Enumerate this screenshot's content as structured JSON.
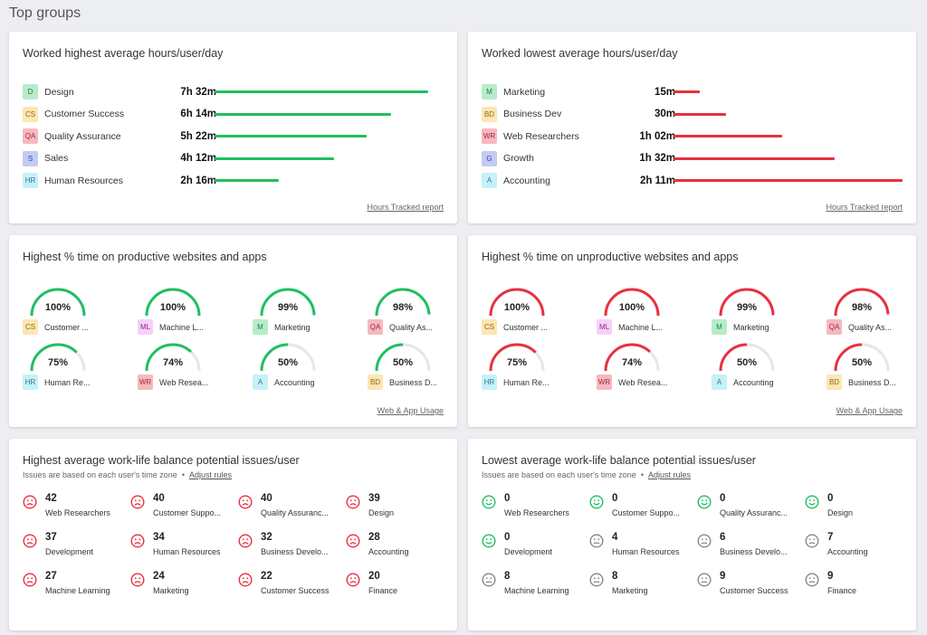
{
  "page_title": "Top groups",
  "colors": {
    "green": "#1fbf5f",
    "red": "#e8303f",
    "gray_track": "#e6e6e6",
    "neutral_face": "#888888"
  },
  "highest_hours": {
    "title": "Worked highest average hours/user/day",
    "link": "Hours Tracked report",
    "rows": [
      {
        "badge": "D",
        "badge_bg": "#b7ecc9",
        "badge_fg": "#267a45",
        "name": "Design",
        "value": "7h 32m",
        "minutes": 452
      },
      {
        "badge": "CS",
        "badge_bg": "#fde6b3",
        "badge_fg": "#8a6a1a",
        "name": "Customer Success",
        "value": "6h 14m",
        "minutes": 374
      },
      {
        "badge": "QA",
        "badge_bg": "#f7b8bf",
        "badge_fg": "#9a2b37",
        "name": "Quality Assurance",
        "value": "5h 22m",
        "minutes": 322
      },
      {
        "badge": "S",
        "badge_bg": "#c4cbf3",
        "badge_fg": "#3c4891",
        "name": "Sales",
        "value": "4h 12m",
        "minutes": 252
      },
      {
        "badge": "HR",
        "badge_bg": "#c6f1f8",
        "badge_fg": "#2b7a88",
        "name": "Human Resources",
        "value": "2h 16m",
        "minutes": 136
      }
    ]
  },
  "lowest_hours": {
    "title": "Worked lowest average hours/user/day",
    "link": "Hours Tracked report",
    "rows": [
      {
        "badge": "M",
        "badge_bg": "#b7ecc9",
        "badge_fg": "#267a45",
        "name": "Marketing",
        "value": "15m",
        "minutes": 15
      },
      {
        "badge": "BD",
        "badge_bg": "#fde6b3",
        "badge_fg": "#8a6a1a",
        "name": "Business Dev",
        "value": "30m",
        "minutes": 30
      },
      {
        "badge": "WR",
        "badge_bg": "#f7b8bf",
        "badge_fg": "#9a2b37",
        "name": "Web Researchers",
        "value": "1h 02m",
        "minutes": 62
      },
      {
        "badge": "G",
        "badge_bg": "#c4cbf3",
        "badge_fg": "#3c4891",
        "name": "Growth",
        "value": "1h 32m",
        "minutes": 92
      },
      {
        "badge": "A",
        "badge_bg": "#c6f1f8",
        "badge_fg": "#2b7a88",
        "name": "Accounting",
        "value": "2h 11m",
        "minutes": 131
      }
    ]
  },
  "productive": {
    "title": "Highest % time on productive websites and apps",
    "link": "Web & App Usage",
    "items": [
      {
        "badge": "CS",
        "badge_bg": "#fde6b3",
        "badge_fg": "#8a6a1a",
        "label": "Customer ...",
        "pct_label": "100%",
        "pct": 100
      },
      {
        "badge": "ML",
        "badge_bg": "#f7d1f7",
        "badge_fg": "#8a2f8a",
        "label": "Machine L...",
        "pct_label": "100%",
        "pct": 100
      },
      {
        "badge": "M",
        "badge_bg": "#b7ecc9",
        "badge_fg": "#267a45",
        "label": "Marketing",
        "pct_label": "99%",
        "pct": 99
      },
      {
        "badge": "QA",
        "badge_bg": "#f7b8bf",
        "badge_fg": "#9a2b37",
        "label": "Quality As...",
        "pct_label": "98%",
        "pct": 98
      },
      {
        "badge": "HR",
        "badge_bg": "#c6f1f8",
        "badge_fg": "#2b7a88",
        "label": "Human Re...",
        "pct_label": "75%",
        "pct": 75
      },
      {
        "badge": "WR",
        "badge_bg": "#f7b8bf",
        "badge_fg": "#9a2b37",
        "label": "Web Resea...",
        "pct_label": "74%",
        "pct": 74
      },
      {
        "badge": "A",
        "badge_bg": "#c6f1f8",
        "badge_fg": "#2b7a88",
        "label": "Accounting",
        "pct_label": "50%",
        "pct": 50
      },
      {
        "badge": "BD",
        "badge_bg": "#fde6b3",
        "badge_fg": "#8a6a1a",
        "label": "Business D...",
        "pct_label": "50%",
        "pct": 50
      }
    ]
  },
  "unproductive": {
    "title": "Highest % time on unproductive websites and apps",
    "link": "Web & App Usage",
    "items": [
      {
        "badge": "CS",
        "badge_bg": "#fde6b3",
        "badge_fg": "#8a6a1a",
        "label": "Customer ...",
        "pct_label": "100%",
        "pct": 100
      },
      {
        "badge": "ML",
        "badge_bg": "#f7d1f7",
        "badge_fg": "#8a2f8a",
        "label": "Machine L...",
        "pct_label": "100%",
        "pct": 100
      },
      {
        "badge": "M",
        "badge_bg": "#b7ecc9",
        "badge_fg": "#267a45",
        "label": "Marketing",
        "pct_label": "99%",
        "pct": 99
      },
      {
        "badge": "QA",
        "badge_bg": "#f7b8bf",
        "badge_fg": "#9a2b37",
        "label": "Quality As...",
        "pct_label": "98%",
        "pct": 98
      },
      {
        "badge": "HR",
        "badge_bg": "#c6f1f8",
        "badge_fg": "#2b7a88",
        "label": "Human Re...",
        "pct_label": "75%",
        "pct": 75
      },
      {
        "badge": "WR",
        "badge_bg": "#f7b8bf",
        "badge_fg": "#9a2b37",
        "label": "Web Resea...",
        "pct_label": "74%",
        "pct": 74
      },
      {
        "badge": "A",
        "badge_bg": "#c6f1f8",
        "badge_fg": "#2b7a88",
        "label": "Accounting",
        "pct_label": "50%",
        "pct": 50
      },
      {
        "badge": "BD",
        "badge_bg": "#fde6b3",
        "badge_fg": "#8a6a1a",
        "label": "Business D...",
        "pct_label": "50%",
        "pct": 50
      }
    ]
  },
  "highest_issues": {
    "title": "Highest average work-life balance potential issues/user",
    "subtitle": "Issues are based on each user's time zone",
    "adjust": "Adjust rules",
    "items": [
      {
        "count": "42",
        "label": "Web Researchers",
        "face": "sad"
      },
      {
        "count": "40",
        "label": "Customer Suppo...",
        "face": "sad"
      },
      {
        "count": "40",
        "label": "Quality Assuranc...",
        "face": "sad"
      },
      {
        "count": "39",
        "label": "Design",
        "face": "sad"
      },
      {
        "count": "37",
        "label": "Development",
        "face": "sad"
      },
      {
        "count": "34",
        "label": "Human Resources",
        "face": "sad"
      },
      {
        "count": "32",
        "label": "Business Develo...",
        "face": "sad"
      },
      {
        "count": "28",
        "label": "Accounting",
        "face": "sad"
      },
      {
        "count": "27",
        "label": "Machine Learning",
        "face": "sad"
      },
      {
        "count": "24",
        "label": "Marketing",
        "face": "sad"
      },
      {
        "count": "22",
        "label": "Customer Success",
        "face": "sad"
      },
      {
        "count": "20",
        "label": "Finance",
        "face": "sad"
      }
    ]
  },
  "lowest_issues": {
    "title": "Lowest average work-life balance potential issues/user",
    "subtitle": "Issues are based on each user's time zone",
    "adjust": "Adjust rules",
    "items": [
      {
        "count": "0",
        "label": "Web Researchers",
        "face": "happy"
      },
      {
        "count": "0",
        "label": "Customer Suppo...",
        "face": "happy"
      },
      {
        "count": "0",
        "label": "Quality Assuranc...",
        "face": "happy"
      },
      {
        "count": "0",
        "label": "Design",
        "face": "happy"
      },
      {
        "count": "0",
        "label": "Development",
        "face": "happy"
      },
      {
        "count": "4",
        "label": "Human Resources",
        "face": "neutral"
      },
      {
        "count": "6",
        "label": "Business Develo...",
        "face": "neutral"
      },
      {
        "count": "7",
        "label": "Accounting",
        "face": "neutral"
      },
      {
        "count": "8",
        "label": "Machine Learning",
        "face": "neutral"
      },
      {
        "count": "8",
        "label": "Marketing",
        "face": "neutral"
      },
      {
        "count": "9",
        "label": "Customer Success",
        "face": "neutral"
      },
      {
        "count": "9",
        "label": "Finance",
        "face": "neutral"
      }
    ]
  }
}
